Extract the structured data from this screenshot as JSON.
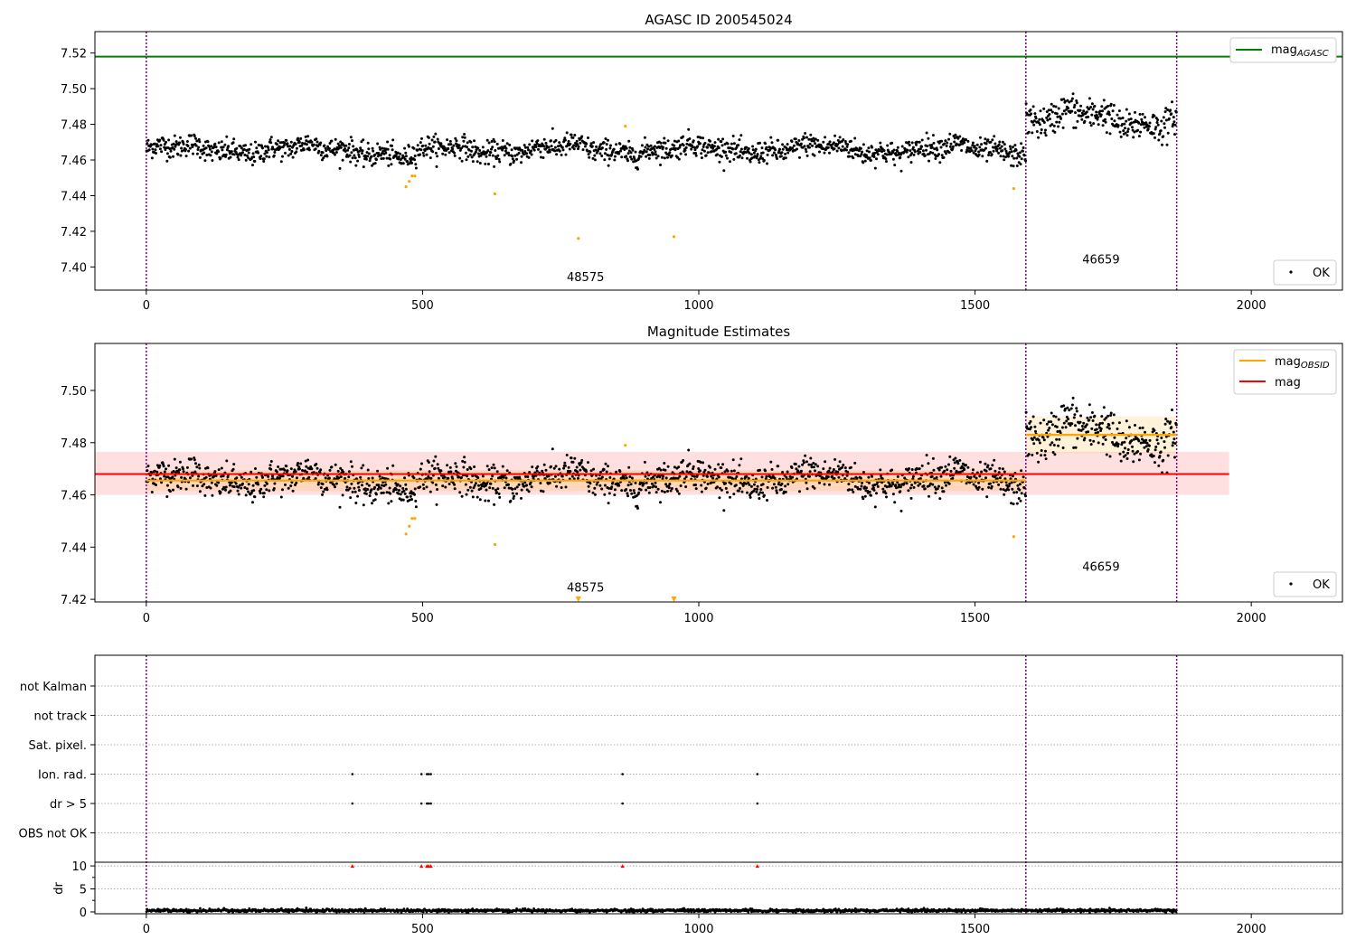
{
  "chart_data": [
    {
      "type": "scatter",
      "title": "AGASC ID 200545024",
      "xlim": [
        -93,
        2165
      ],
      "ylim": [
        7.387,
        7.532
      ],
      "xticks": [
        0,
        500,
        1000,
        1500,
        2000
      ],
      "yticks": [
        7.4,
        7.42,
        7.44,
        7.46,
        7.48,
        7.5,
        7.52
      ],
      "ytick_labels": [
        "7.40",
        "7.42",
        "7.44",
        "7.46",
        "7.48",
        "7.50",
        "7.52"
      ],
      "mag_agasc": 7.518,
      "obsid_boundaries": [
        0,
        1592,
        1865
      ],
      "obsid_labels": [
        {
          "text": "48575",
          "x": 795,
          "y": 7.392
        },
        {
          "text": "46659",
          "x": 1728,
          "y": 7.402
        }
      ],
      "segments": [
        {
          "x0": 0,
          "x1": 1592,
          "base": 7.466,
          "amp": 0.004
        },
        {
          "x0": 1592,
          "x1": 1865,
          "base": 7.483,
          "amp": 0.007
        }
      ],
      "outliers": [
        {
          "x": 470,
          "y": 7.445
        },
        {
          "x": 476,
          "y": 7.448
        },
        {
          "x": 481,
          "y": 7.451
        },
        {
          "x": 486,
          "y": 7.451
        },
        {
          "x": 631,
          "y": 7.441
        },
        {
          "x": 782,
          "y": 7.416
        },
        {
          "x": 867,
          "y": 7.479
        },
        {
          "x": 955,
          "y": 7.417
        },
        {
          "x": 1570,
          "y": 7.444
        }
      ],
      "legend": [
        {
          "label": "mag",
          "subscript": "AGASC",
          "color": "#008000"
        }
      ],
      "legend2": [
        {
          "label": "OK",
          "color": "#000000"
        }
      ],
      "legend_position": "top-right"
    },
    {
      "type": "scatter",
      "title": "Magnitude Estimates",
      "xlim": [
        -93,
        2165
      ],
      "ylim": [
        7.419,
        7.518
      ],
      "xticks": [
        0,
        500,
        1000,
        1500,
        2000
      ],
      "yticks": [
        7.42,
        7.44,
        7.46,
        7.48,
        7.5
      ],
      "ytick_labels": [
        "7.42",
        "7.44",
        "7.46",
        "7.48",
        "7.50"
      ],
      "obsid_boundaries": [
        0,
        1592,
        1865
      ],
      "obsid_labels": [
        {
          "text": "48575",
          "x": 795,
          "y": 7.423
        },
        {
          "text": "46659",
          "x": 1728,
          "y": 7.431
        }
      ],
      "mag": {
        "value": 7.468,
        "lo": 7.46,
        "hi": 7.4765,
        "x0": -93,
        "x1": 1960
      },
      "mag_obsid": [
        {
          "x0": 0,
          "x1": 1592,
          "value": 7.4655,
          "lo": 7.4615,
          "hi": 7.4695
        },
        {
          "x0": 1592,
          "x1": 1865,
          "value": 7.483,
          "lo": 7.476,
          "hi": 7.49
        }
      ],
      "low_markers": [
        {
          "x": 782
        },
        {
          "x": 955
        }
      ],
      "legend": [
        {
          "label": "mag",
          "subscript": "OBSID",
          "color": "#ffa500"
        },
        {
          "label": "mag",
          "subscript": "",
          "color": "#ff0000"
        }
      ],
      "legend2": [
        {
          "label": "OK",
          "color": "#000000"
        }
      ],
      "legend_position": "top-right"
    },
    {
      "type": "scatter",
      "title": "",
      "xlim": [
        -93,
        2165
      ],
      "xticks": [
        0,
        500,
        1000,
        1500,
        2000
      ],
      "flag_rows": [
        "not Kalman",
        "not track",
        "Sat. pixel.",
        "Ion. rad.",
        "dr > 5",
        "OBS not OK"
      ],
      "flag_points": [
        {
          "row": "Ion. rad.",
          "x": [
            373,
            498,
            508,
            511,
            515,
            862,
            1106
          ]
        },
        {
          "row": "dr > 5",
          "x": [
            373,
            498,
            508,
            511,
            515,
            862,
            1106
          ]
        }
      ],
      "dr": {
        "ylabel": "dr",
        "yticks": [
          0,
          5,
          10
        ],
        "ytick_labels": [
          "0",
          "5",
          "10"
        ],
        "ylim": [
          -0.4,
          10.8
        ],
        "clipped_x": [
          373,
          498,
          508,
          511,
          515,
          862,
          1106
        ],
        "typical": 0.3
      },
      "obsid_boundaries": [
        0,
        1592,
        1865
      ]
    }
  ]
}
